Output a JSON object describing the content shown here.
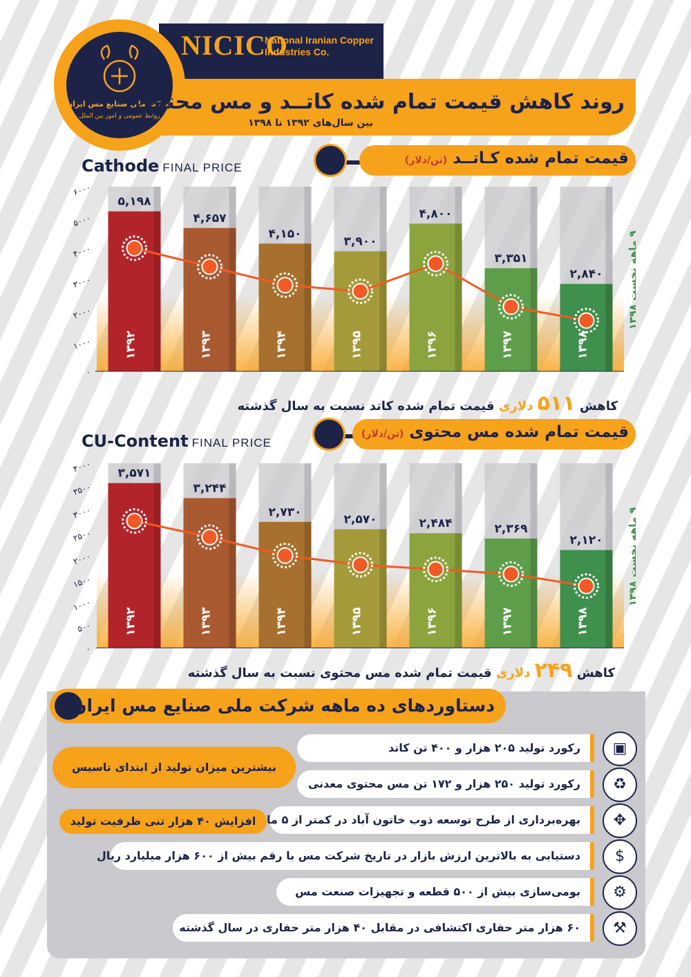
{
  "header": {
    "brand": "NICICO",
    "company_en": "National Iranian Copper Industries Co.",
    "logo_text_fa": "شرکت ملی صنایع مس ایران",
    "logo_sub_fa": "روابط عمومی و امور بین الملل",
    "title": "روند کاهش قیمت تمام شده کاتــد و مس محتوی",
    "subtitle": "بین سال‌های ۱۳۹۲ تا ۱۳۹۸"
  },
  "sections": {
    "cathode_title": "قیمت تمام شده کـاتــد",
    "cathode_unit": "(تن/دلار)",
    "cu_title": "قیمت تمام شده مس محتوی",
    "cu_unit": "(تن/دلار)",
    "achievements_title": "دستاوردهای ده ماهه شرکت ملی صنایع مس ایران"
  },
  "colors": {
    "navy": "#1c2347",
    "orange": "#f7a21b",
    "bars": [
      "#b3242a",
      "#a95a31",
      "#a8702e",
      "#a59a3a",
      "#8ba43d",
      "#5e9e4a",
      "#3f8f4d"
    ]
  },
  "chart_data": [
    {
      "type": "bar",
      "title": "Cathode",
      "title_suffix": "FINAL PRICE",
      "categories": [
        "۱۳۹۲",
        "۱۳۹۳",
        "۱۳۹۴",
        "۱۳۹۵",
        "۱۳۹۶",
        "۱۳۹۷",
        "۱۳۹۸"
      ],
      "values": [
        5198,
        4657,
        4150,
        3900,
        4800,
        3351,
        2840
      ],
      "value_labels": [
        "۵,۱۹۸",
        "۴,۶۵۷",
        "۴,۱۵۰",
        "۳,۹۰۰",
        "۴,۸۰۰",
        "۳,۳۵۱",
        "۲,۸۴۰"
      ],
      "line_values": [
        4000,
        3400,
        2800,
        2600,
        3500,
        2100,
        1650
      ],
      "ylim": [
        0,
        6000
      ],
      "yticks": [
        0,
        1000,
        2000,
        3000,
        4000,
        5000,
        6000
      ],
      "ytick_labels": [
        "۰",
        "۱۰۰۰",
        "۲۰۰۰",
        "۳۰۰۰",
        "۴۰۰۰",
        "۵۰۰۰",
        "۶۰۰۰"
      ],
      "side_note": "۹ ماهه نخست ۱۳۹۸",
      "summary_pre": "کاهش",
      "summary_value": "۵۱۱",
      "summary_unit": "دلاری",
      "summary_post": "قیمت تمام شده کاتد نسبت به سال گذشته"
    },
    {
      "type": "bar",
      "title": "CU-Content",
      "title_suffix": "FINAL PRICE",
      "categories": [
        "۱۳۹۲",
        "۱۳۹۳",
        "۱۳۹۴",
        "۱۳۹۵",
        "۱۳۹۶",
        "۱۳۹۷",
        "۱۳۹۸"
      ],
      "values": [
        3571,
        3244,
        2730,
        2570,
        2484,
        2369,
        2120
      ],
      "value_labels": [
        "۳,۵۷۱",
        "۳,۲۴۴",
        "۲,۷۳۰",
        "۲,۵۷۰",
        "۲,۴۸۴",
        "۲,۳۶۹",
        "۲,۱۲۰"
      ],
      "line_values": [
        2750,
        2400,
        2000,
        1800,
        1700,
        1600,
        1340
      ],
      "ylim": [
        0,
        4000
      ],
      "yticks": [
        0,
        500,
        1000,
        1500,
        2000,
        2500,
        3000,
        3500,
        4000
      ],
      "ytick_labels": [
        "۰",
        "۵۰۰",
        "۱۰۰۰",
        "۱۵۰۰",
        "۲۰۰۰",
        "۲۵۰۰",
        "۳۰۰۰",
        "۳۵۰۰",
        "۴۰۰۰"
      ],
      "side_note": "۹ ماهه نخست ۱۳۹۸",
      "summary_pre": "کاهش",
      "summary_value": "۲۴۹",
      "summary_unit": "دلاری",
      "summary_post": "قیمت تمام شده مس محتوی نسبت به سال گذشته"
    }
  ],
  "achievements": {
    "items": [
      {
        "text": "رکورد تولید ۲۰۵ هزار و ۴۰۰ تن کاتد",
        "icon": "cathode-box-icon"
      },
      {
        "text": "رکورد تولید ۲۵۰ هزار و ۱۷۲ تن مس محتوی معدنی",
        "icon": "mine-cart-icon"
      },
      {
        "text": "بهره‌برداری از طرح توسعه ذوب خاتون آباد در کمتر از ۵ ماه",
        "icon": "expansion-icon"
      },
      {
        "text": "دستیابی به بالاترین ارزش بازار در تاریخ شرکت مس با رقم بیش از ۶۰۰ هزار میلیارد ریال",
        "icon": "coins-icon"
      },
      {
        "text": "بومی‌سازی بیش از ۵۰۰ قطعه و تجهیزات صنعت مس",
        "icon": "worker-icon"
      },
      {
        "text": "۶۰ هزار متر حفاری اکتشافی در مقابل ۴۰ هزار متر حفاری در سال گذشته",
        "icon": "pickaxe-icon"
      }
    ],
    "note_1": "بیشترین میزان تولید از ابتدای تاسیس",
    "note_2": "افزایش ۴۰ هزار تنی ظرفیت تولید"
  }
}
